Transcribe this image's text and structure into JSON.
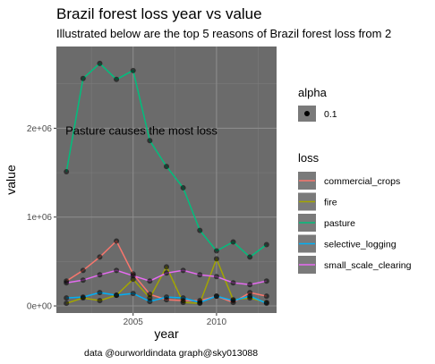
{
  "chart_data": {
    "type": "scatter",
    "title": "Brazil forest loss year vs value",
    "subtitle": "Illustrated below are the top 5 reasons of Brazil forest loss from 2",
    "xlabel": "year",
    "ylabel": "value",
    "caption": "data @ourworldindata graph@sky013088",
    "annotation": {
      "text": "Pasture causes the most loss",
      "x": 2005.5,
      "y": 1970000
    },
    "xlim": [
      2000.4,
      2013.6
    ],
    "ylim": [
      -80000,
      2920000
    ],
    "x_ticks": [
      {
        "value": 2005,
        "label": "2005"
      },
      {
        "value": 2010,
        "label": "2010"
      }
    ],
    "y_ticks": [
      {
        "value": 0,
        "label": "0e+00"
      },
      {
        "value": 1000000,
        "label": "1e+06"
      },
      {
        "value": 2000000,
        "label": "2e+06"
      }
    ],
    "grid": true,
    "panel_color": "#6b6b6b",
    "legend_alpha": {
      "title": "alpha",
      "label": "0.1"
    },
    "legend_loss": {
      "title": "loss"
    },
    "series": [
      {
        "name": "commercial_crops",
        "color": "#f8766d",
        "x": [
          2001,
          2002,
          2003,
          2004,
          2005,
          2006,
          2007,
          2008,
          2009,
          2010,
          2011,
          2012,
          2013
        ],
        "y": [
          280000,
          400000,
          550000,
          730000,
          360000,
          130000,
          70000,
          60000,
          60000,
          110000,
          40000,
          150000,
          110000
        ]
      },
      {
        "name": "fire",
        "color": "#a3a500",
        "x": [
          2001,
          2002,
          2003,
          2004,
          2005,
          2006,
          2007,
          2008,
          2009,
          2010,
          2011,
          2012,
          2013
        ],
        "y": [
          30000,
          90000,
          60000,
          120000,
          300000,
          90000,
          440000,
          40000,
          30000,
          530000,
          70000,
          90000,
          40000
        ]
      },
      {
        "name": "pasture",
        "color": "#00bf7d",
        "x": [
          2001,
          2002,
          2003,
          2004,
          2005,
          2006,
          2007,
          2008,
          2009,
          2010,
          2011,
          2012,
          2013
        ],
        "y": [
          1510000,
          2560000,
          2730000,
          2550000,
          2650000,
          1860000,
          1570000,
          1330000,
          850000,
          620000,
          720000,
          550000,
          690000
        ]
      },
      {
        "name": "selective_logging",
        "color": "#00b0f6",
        "x": [
          2001,
          2002,
          2003,
          2004,
          2005,
          2006,
          2007,
          2008,
          2009,
          2010,
          2011,
          2012,
          2013
        ],
        "y": [
          90000,
          100000,
          150000,
          120000,
          140000,
          50000,
          100000,
          90000,
          40000,
          110000,
          60000,
          110000,
          30000
        ]
      },
      {
        "name": "small_scale_clearing",
        "color": "#e76bf3",
        "x": [
          2001,
          2002,
          2003,
          2004,
          2005,
          2006,
          2007,
          2008,
          2009,
          2010,
          2011,
          2012,
          2013
        ],
        "y": [
          260000,
          290000,
          350000,
          400000,
          340000,
          280000,
          370000,
          400000,
          350000,
          330000,
          260000,
          240000,
          280000
        ]
      }
    ]
  }
}
